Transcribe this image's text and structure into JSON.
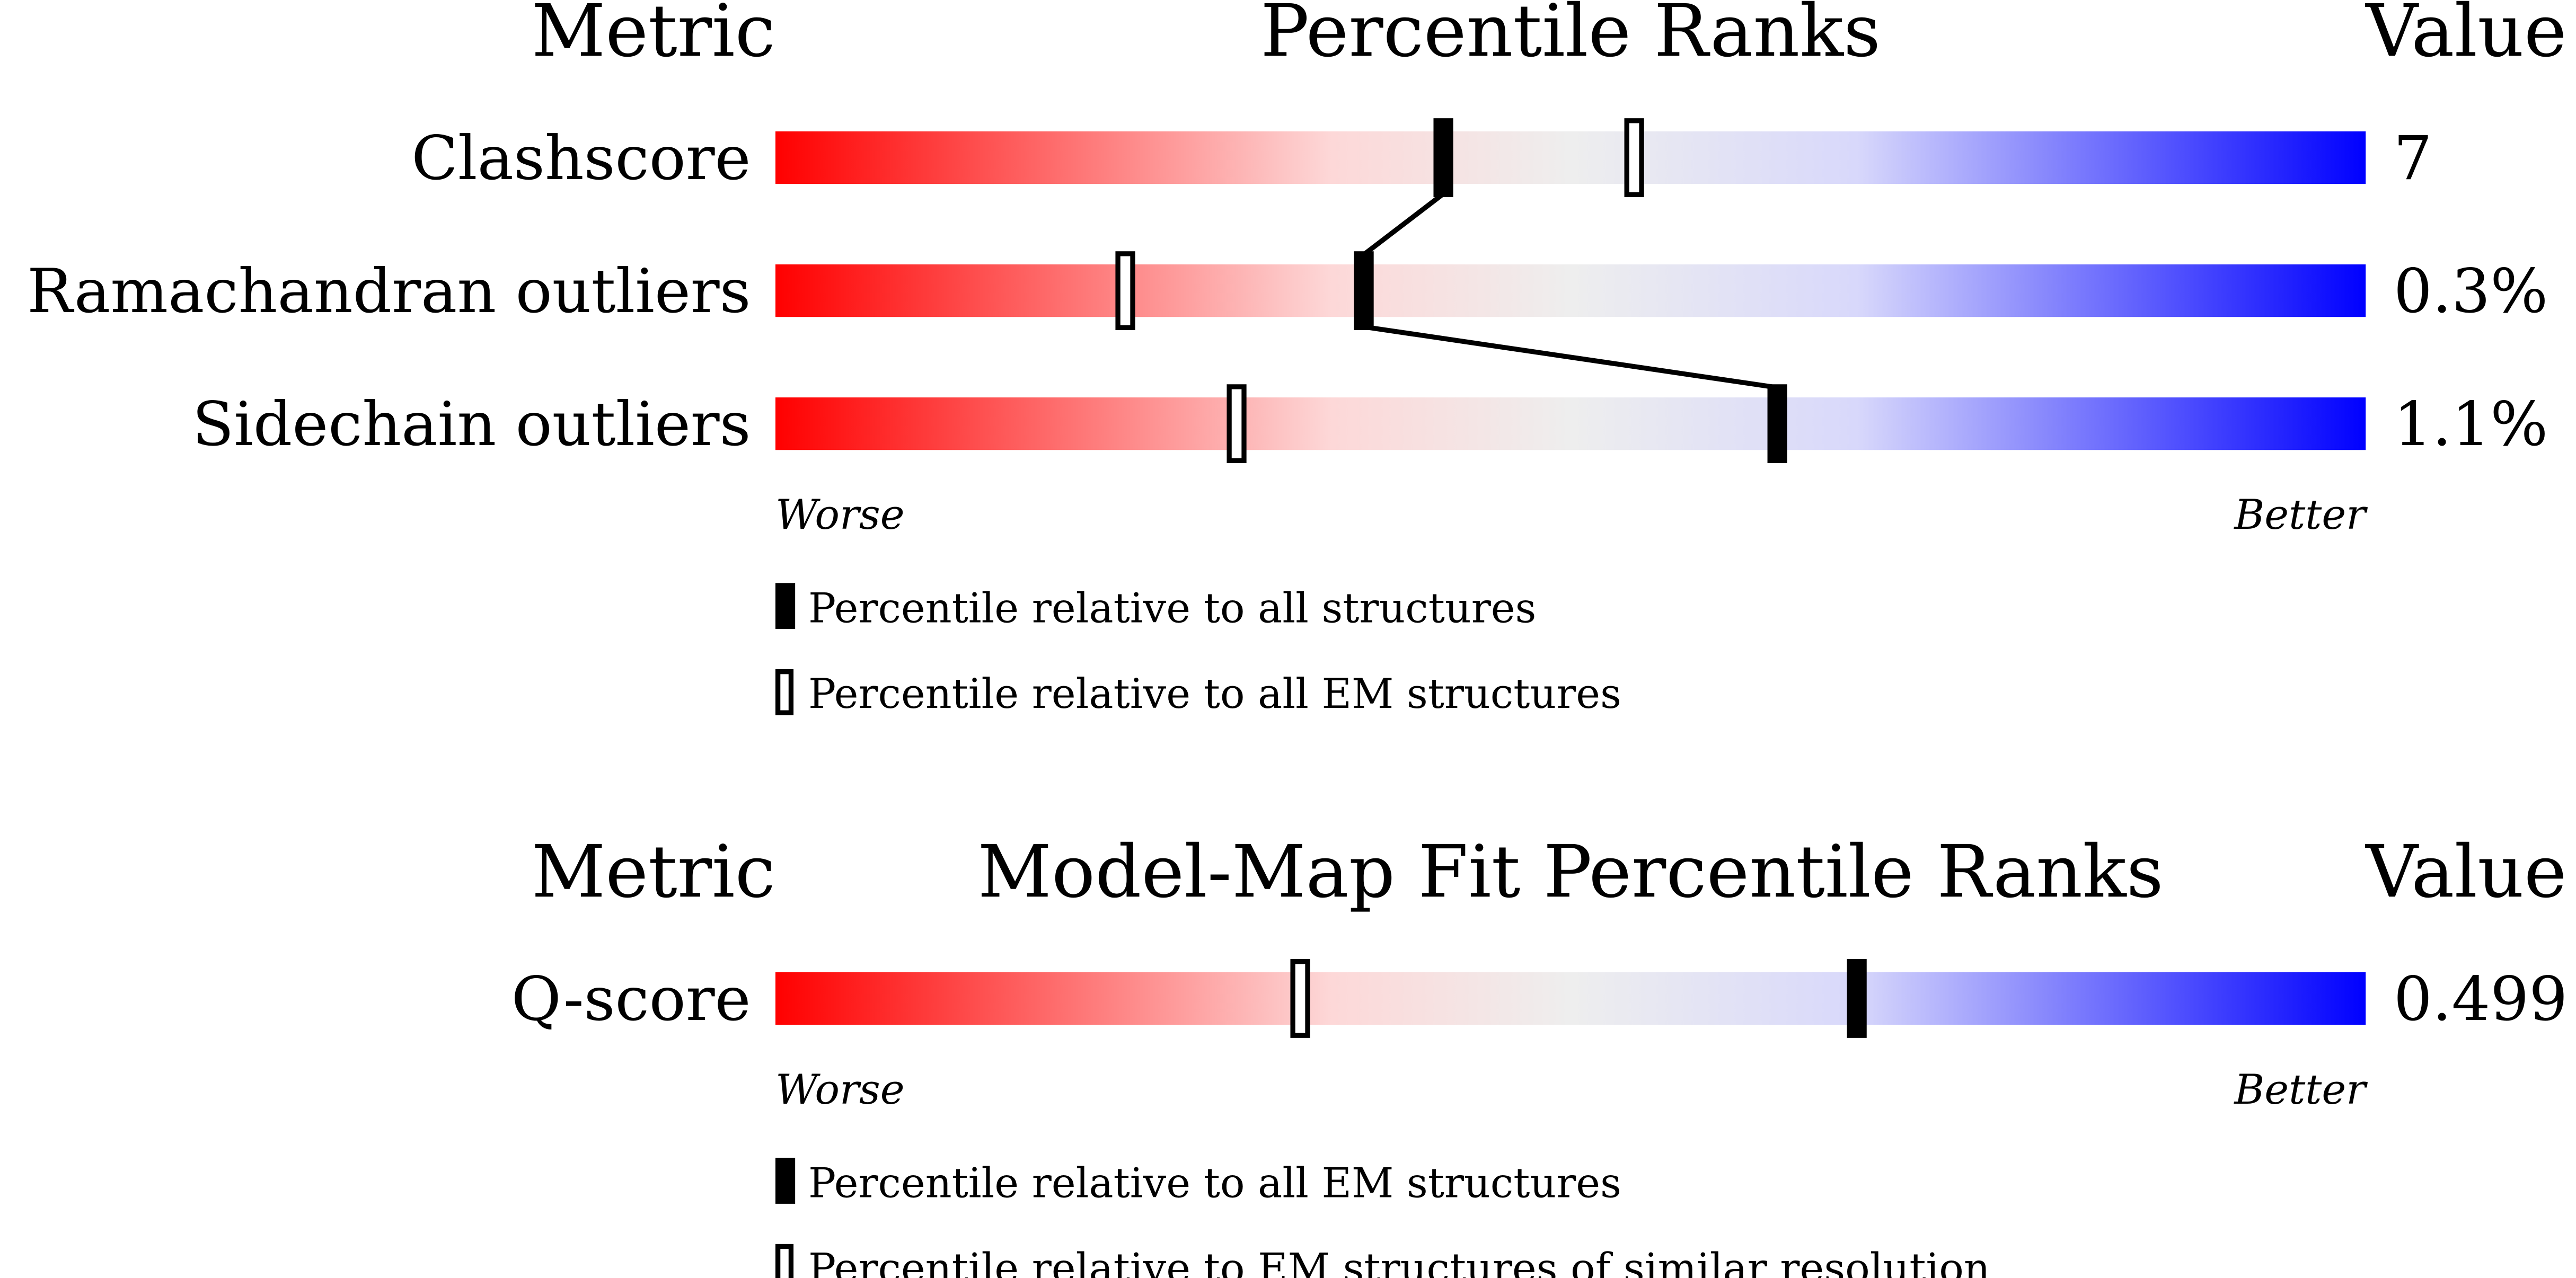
{
  "chart_data": [
    {
      "type": "percentile-slider",
      "header": {
        "metric": "Metric",
        "title": "Percentile Ranks",
        "value": "Value"
      },
      "xlim": [
        0,
        100
      ],
      "metrics": [
        "Clashscore",
        "Ramachandran outliers",
        "Sidechain outliers"
      ],
      "value_labels": [
        "7",
        "0.3%",
        "1.1%"
      ],
      "worse": "Worse",
      "better": "Better",
      "series": [
        {
          "name": "Percentile relative to all structures",
          "marker": "filled",
          "connected": true,
          "color": "#000000",
          "values": [
            42,
            37,
            63
          ]
        },
        {
          "name": "Percentile relative to all EM structures",
          "marker": "open",
          "connected": false,
          "color": "#000000",
          "values": [
            54,
            22,
            29
          ]
        }
      ]
    },
    {
      "type": "percentile-slider",
      "header": {
        "metric": "Metric",
        "title": "Model-Map Fit Percentile Ranks",
        "value": "Value"
      },
      "xlim": [
        0,
        100
      ],
      "metrics": [
        "Q-score"
      ],
      "value_labels": [
        "0.499"
      ],
      "worse": "Worse",
      "better": "Better",
      "series": [
        {
          "name": "Percentile relative to all EM structures",
          "marker": "filled",
          "connected": true,
          "color": "#000000",
          "values": [
            68
          ]
        },
        {
          "name": "Percentile relative to EM structures of similar resolution",
          "marker": "open",
          "connected": false,
          "color": "#000000",
          "values": [
            33
          ]
        }
      ]
    }
  ]
}
